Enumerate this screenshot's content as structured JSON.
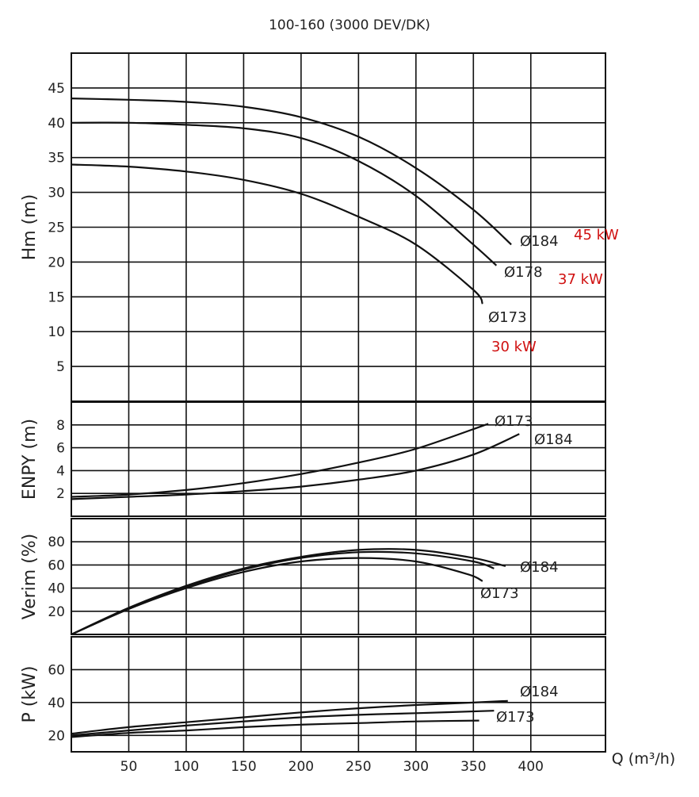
{
  "chart_data": {
    "type": "line",
    "title": "100-160 (3000 DEV/DK)",
    "xlabel": "Q (m³/h)",
    "xlim": [
      0,
      465
    ],
    "x_ticks": [
      50,
      100,
      150,
      200,
      250,
      300,
      350,
      400
    ],
    "x_tick_labels": [
      "50",
      "100",
      "150",
      "200",
      "250",
      "300",
      "350",
      "400"
    ],
    "panels": [
      {
        "id": "hm",
        "ylabel": "Hm (m)",
        "ylim": [
          0,
          50
        ],
        "y_ticks": [
          5,
          10,
          15,
          20,
          25,
          30,
          35,
          40,
          45
        ],
        "y_tick_labels": [
          "5",
          "10",
          "15",
          "20",
          "25",
          "30",
          "35",
          "40",
          "45"
        ],
        "series": [
          {
            "name": "Ø184",
            "x": [
              0,
              50,
              100,
              150,
              200,
              250,
              300,
              350,
              383
            ],
            "y": [
              43.5,
              43.3,
              43,
              42.3,
              40.8,
              38,
              33.5,
              27.5,
              22.5
            ]
          },
          {
            "name": "Ø178",
            "x": [
              0,
              50,
              100,
              150,
              200,
              250,
              300,
              350,
              370
            ],
            "y": [
              40,
              40,
              39.7,
              39.2,
              37.8,
              34.5,
              29.5,
              22.5,
              19.5
            ]
          },
          {
            "name": "Ø173",
            "x": [
              0,
              50,
              100,
              150,
              200,
              250,
              300,
              350,
              358
            ],
            "y": [
              34,
              33.7,
              33,
              31.8,
              29.8,
              26.5,
              22.5,
              16,
              14
            ]
          }
        ],
        "curve_labels": [
          "Ø184",
          "Ø178",
          "Ø173"
        ],
        "power_labels": [
          "45 kW",
          "37 kW",
          "30 kW"
        ]
      },
      {
        "id": "enpy",
        "ylabel": "ENPY (m)",
        "ylim": [
          0,
          10
        ],
        "y_ticks": [
          2,
          4,
          6,
          8
        ],
        "y_tick_labels": [
          "2",
          "4",
          "6",
          "8"
        ],
        "series": [
          {
            "name": "Ø173",
            "x": [
              0,
              50,
              100,
              150,
              200,
              250,
              300,
              363
            ],
            "y": [
              1.7,
              1.9,
              2.3,
              2.9,
              3.7,
              4.7,
              5.9,
              8.1
            ]
          },
          {
            "name": "Ø184",
            "x": [
              0,
              50,
              100,
              150,
              200,
              250,
              300,
              350,
              390
            ],
            "y": [
              1.5,
              1.7,
              1.9,
              2.2,
              2.6,
              3.2,
              4.0,
              5.4,
              7.2
            ]
          }
        ],
        "curve_labels": [
          "Ø173",
          "Ø184"
        ]
      },
      {
        "id": "verim",
        "ylabel": "Verim (%)",
        "ylim": [
          0,
          100
        ],
        "y_ticks": [
          20,
          40,
          60,
          80
        ],
        "y_tick_labels": [
          "20",
          "40",
          "60",
          "80"
        ],
        "series": [
          {
            "name": "Ø184",
            "x": [
              0,
              50,
              100,
              150,
              200,
              250,
              300,
              350,
              378
            ],
            "y": [
              0,
              23,
              42,
              57,
              67,
              73,
              73,
              66,
              59
            ]
          },
          {
            "name": "Ø178",
            "x": [
              0,
              50,
              100,
              150,
              200,
              250,
              300,
              350,
              368
            ],
            "y": [
              0,
              22,
              41,
              56,
              66,
              71,
              70,
              63,
              57
            ]
          },
          {
            "name": "Ø173",
            "x": [
              0,
              50,
              100,
              150,
              200,
              250,
              300,
              345,
              358
            ],
            "y": [
              0,
              22,
              40,
              54,
              63,
              66,
              63,
              52,
              46
            ]
          }
        ],
        "curve_labels": [
          "Ø184",
          "Ø173"
        ]
      },
      {
        "id": "power",
        "ylabel": "P (kW)",
        "ylim": [
          10,
          80
        ],
        "y_ticks": [
          20,
          40,
          60
        ],
        "y_tick_labels": [
          "20",
          "40",
          "60"
        ],
        "series": [
          {
            "name": "Ø184",
            "x": [
              0,
              50,
              100,
              150,
              200,
              250,
              300,
              350,
              380
            ],
            "y": [
              21,
              25,
              28,
              31,
              34,
              36.5,
              38.5,
              40,
              41
            ]
          },
          {
            "name": "Ø178",
            "x": [
              0,
              50,
              100,
              150,
              200,
              250,
              300,
              368
            ],
            "y": [
              20,
              23,
              26,
              28.5,
              31,
              32.5,
              33.5,
              35
            ]
          },
          {
            "name": "Ø173",
            "x": [
              0,
              50,
              100,
              150,
              200,
              250,
              300,
              355
            ],
            "y": [
              19,
              21.5,
              23,
              25,
              26.5,
              27.5,
              28.5,
              29
            ]
          }
        ],
        "curve_labels": [
          "Ø184",
          "Ø173"
        ]
      }
    ],
    "grid": true
  }
}
